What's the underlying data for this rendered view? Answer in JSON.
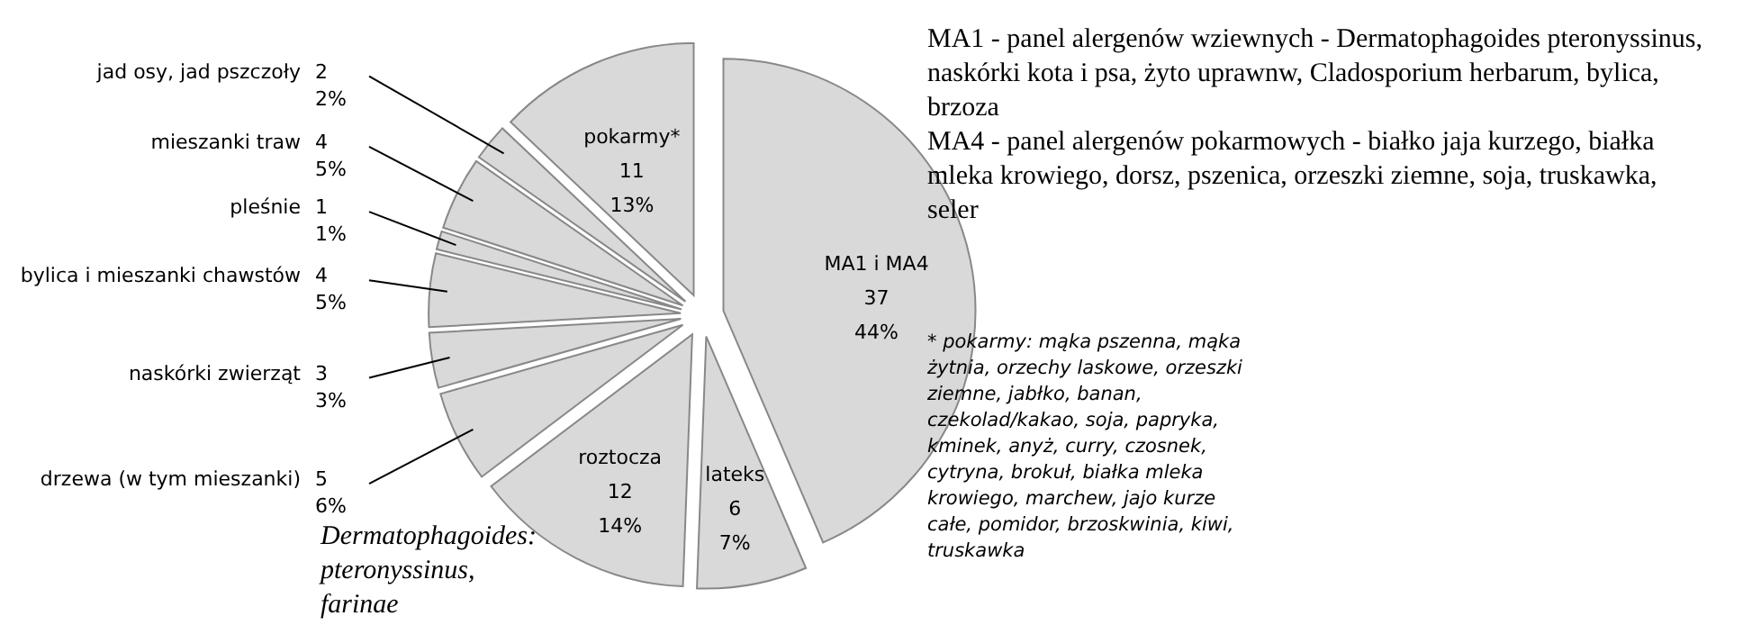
{
  "chart_data": {
    "type": "pie",
    "categories": [
      "MA1 i MA4",
      "lateks",
      "roztocza",
      "drzewa (w tym mieszanki)",
      "naskórki zwierząt",
      "bylica i mieszanki chawstów",
      "pleśnie",
      "mieszanki traw",
      "jad osy, jad pszczoły",
      "pokarmy*"
    ],
    "values": [
      37,
      6,
      12,
      5,
      3,
      4,
      1,
      4,
      2,
      11
    ],
    "value_labels": [
      "37\n44%",
      "6\n7%",
      "12\n14%",
      "5\n6%",
      "3\n3%",
      "4\n5%",
      "1\n1%",
      "4\n5%",
      "2\n2%",
      "11\n13%"
    ],
    "colors": [
      "#d9d9d9",
      "#d9d9d9",
      "#d9d9d9",
      "#d9d9d9",
      "#d9d9d9",
      "#d9d9d9",
      "#d9d9d9",
      "#d9d9d9",
      "#d9d9d9",
      "#d9d9d9"
    ],
    "annotations": [
      "MA1 - panel alergenów wziewnych - Dermatophagoides pteronyssinus, naskórki kota i psa, żyto uprawnw, Cladosporium herbarum, bylica, brzoza",
      "MA4 - panel alergenów pokarmowych - białko jaja kurzego, białka mleka krowiego, dorsz, pszenica, orzeszki ziemne, soja, truskawka, seler",
      "* pokarmy: mąka pszenna, mąka żytnia, orzechy laskowe, orzeszki ziemne, jabłko, banan, czekolad/kakao, soja, papryka, kminek, anyż, curry, czosnek, cytryna, brokuł, białka mleka krowiego, marchew, jajo kurze całe, pomidor, brzoskwinia, kiwi, truskawka",
      "Dermatophagoides: pteronyssinus, farinae"
    ]
  }
}
